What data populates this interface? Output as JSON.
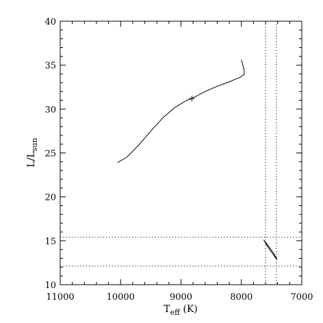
{
  "chart_data": {
    "type": "line",
    "xlabel": {
      "main": "T",
      "sub": "eff",
      "unit": " (K)"
    },
    "ylabel": {
      "main": "L/L",
      "sub": "sun"
    },
    "xlim": [
      11000,
      7000
    ],
    "ylim": [
      10,
      40
    ],
    "xticks": [
      "11000",
      "10000",
      "9000",
      "8000",
      "7000"
    ],
    "xtick_values": [
      11000,
      10000,
      9000,
      8000,
      7000
    ],
    "yticks": [
      "10",
      "15",
      "20",
      "25",
      "30",
      "35",
      "40"
    ],
    "ytick_values": [
      10,
      15,
      20,
      25,
      30,
      35,
      40
    ],
    "grid": false,
    "series": [
      {
        "style": "solid",
        "x": [
          10050,
          9900,
          9700,
          9500,
          9300,
          9100,
          8900,
          8820,
          8600,
          8400,
          8200,
          8100,
          8020,
          7950,
          7960,
          7980,
          8000
        ],
        "y": [
          23.9,
          24.5,
          25.9,
          27.5,
          29.0,
          30.2,
          31.0,
          31.2,
          32.0,
          32.6,
          33.1,
          33.4,
          33.6,
          34.0,
          34.6,
          35.1,
          35.6
        ]
      },
      {
        "style": "solid",
        "x": [
          7620,
          7540,
          7460,
          7410,
          7430,
          7500,
          7580,
          7630
        ],
        "y": [
          15.0,
          14.3,
          13.5,
          12.9,
          13.0,
          13.7,
          14.5,
          15.1
        ]
      }
    ],
    "markers": [
      {
        "symbol": "+",
        "x": 8820,
        "y": 31.2
      }
    ],
    "reference_lines": [
      {
        "orientation": "vertical",
        "value": 7600,
        "style": "dotted"
      },
      {
        "orientation": "vertical",
        "value": 7420,
        "style": "dotted"
      },
      {
        "orientation": "horizontal",
        "value": 15.4,
        "style": "dotted"
      },
      {
        "orientation": "horizontal",
        "value": 12.1,
        "style": "dotted"
      }
    ]
  }
}
